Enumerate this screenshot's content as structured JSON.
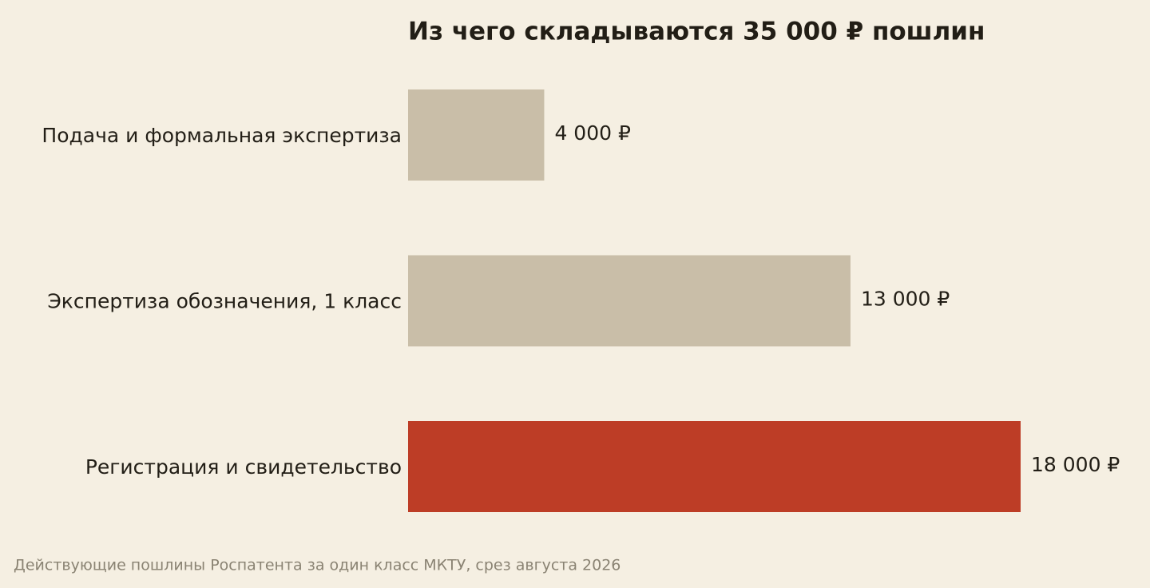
{
  "chart_data": {
    "type": "hbar",
    "title": "Из чего складываются 35 000 ₽ пошлин",
    "categories": [
      "Подача и формальная экспертиза",
      "Экспертиза обозначения, 1 класс",
      "Регистрация и свидетельство"
    ],
    "values": [
      4000,
      13000,
      18000
    ],
    "value_labels": [
      "4 000 ₽",
      "13 000 ₽",
      "18 000 ₽"
    ],
    "colors": [
      "#c9bea8",
      "#c9bea8",
      "#bd3d26"
    ],
    "note": "Действующие пошлины Роспатента за один класс МКТУ, срез августа 2026"
  }
}
